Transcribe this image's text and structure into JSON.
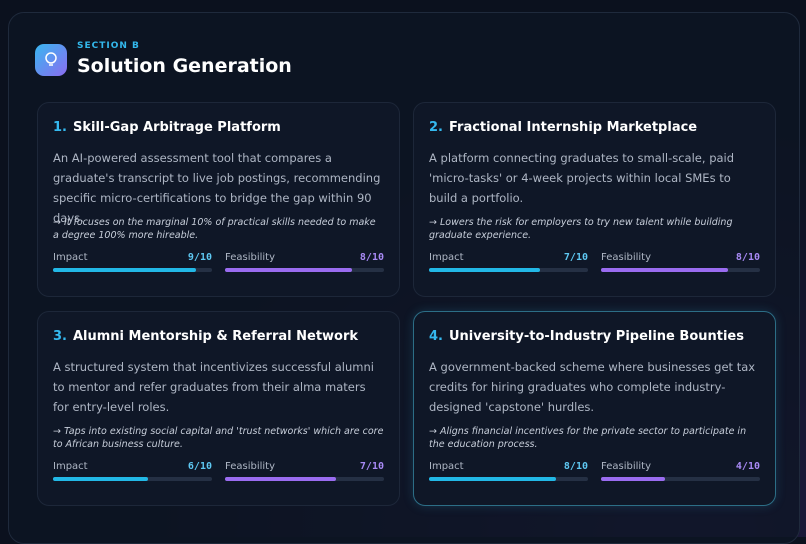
{
  "section": {
    "label": "SECTION B",
    "title": "Solution Generation"
  },
  "cards": [
    {
      "number": "1.",
      "title": "Skill-Gap Arbitrage Platform",
      "description": "An AI-powered assessment tool that compares a graduate's transcript to live job postings, recommending specific micro-certifications to bridge the gap within 90 days.",
      "note": "→ It focuses on the marginal 10% of practical skills needed to make a degree 100% more hireable.",
      "impact": {
        "name": "Impact",
        "value": 9,
        "max": 10,
        "label": "9/10"
      },
      "feasibility": {
        "name": "Feasibility",
        "value": 8,
        "max": 10,
        "label": "8/10"
      }
    },
    {
      "number": "2.",
      "title": "Fractional Internship Marketplace",
      "description": "A platform connecting graduates to small-scale, paid 'micro-tasks' or 4-week projects within local SMEs to build a portfolio.",
      "note": "→ Lowers the risk for employers to try new talent while building graduate experience.",
      "impact": {
        "name": "Impact",
        "value": 7,
        "max": 10,
        "label": "7/10"
      },
      "feasibility": {
        "name": "Feasibility",
        "value": 8,
        "max": 10,
        "label": "8/10"
      }
    },
    {
      "number": "3.",
      "title": "Alumni Mentorship & Referral Network",
      "description": "A structured system that incentivizes successful alumni to mentor and refer graduates from their alma maters for entry-level roles.",
      "note": "→ Taps into existing social capital and 'trust networks' which are core to African business culture.",
      "impact": {
        "name": "Impact",
        "value": 6,
        "max": 10,
        "label": "6/10"
      },
      "feasibility": {
        "name": "Feasibility",
        "value": 7,
        "max": 10,
        "label": "7/10"
      }
    },
    {
      "number": "4.",
      "title": "University-to-Industry Pipeline Bounties",
      "description": "A government-backed scheme where businesses get tax credits for hiring graduates who complete industry-designed 'capstone' hurdles.",
      "note": "→ Aligns financial incentives for the private sector to participate in the education process.",
      "impact": {
        "name": "Impact",
        "value": 8,
        "max": 10,
        "label": "8/10"
      },
      "feasibility": {
        "name": "Feasibility",
        "value": 4,
        "max": 10,
        "label": "4/10"
      }
    }
  ]
}
